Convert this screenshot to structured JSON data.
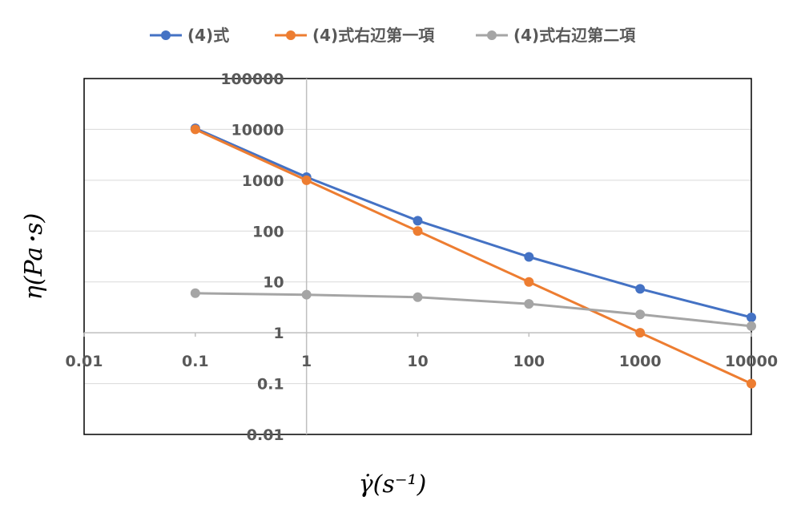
{
  "chart_data": {
    "type": "line",
    "x_scale": "log",
    "y_scale": "log",
    "xlim": [
      0.01,
      10000
    ],
    "ylim": [
      0.01,
      100000
    ],
    "x_ticks": [
      "0.01",
      "0.1",
      "1",
      "10",
      "100",
      "1000",
      "10000"
    ],
    "y_ticks": [
      "0.01",
      "0.1",
      "1",
      "10",
      "100",
      "1000",
      "10000",
      "100000"
    ],
    "x": [
      0.1,
      1,
      10,
      100,
      1000,
      10000
    ],
    "series": [
      {
        "name": "(4)式",
        "color": "#4472C4",
        "values": [
          10500,
          1150,
          160,
          31,
          7.3,
          2.0
        ]
      },
      {
        "name": "(4)式右辺第一項",
        "color": "#ED7D31",
        "values": [
          10000,
          1000,
          100,
          10,
          1,
          0.1
        ]
      },
      {
        "name": "(4)式右辺第二項",
        "color": "#A5A5A5",
        "values": [
          6.0,
          5.6,
          5.0,
          3.7,
          2.3,
          1.35
        ]
      }
    ],
    "xlabel": "γ̇(s⁻¹)",
    "ylabel": "η(Pa･s)",
    "grid": true,
    "legend_position": "top"
  }
}
